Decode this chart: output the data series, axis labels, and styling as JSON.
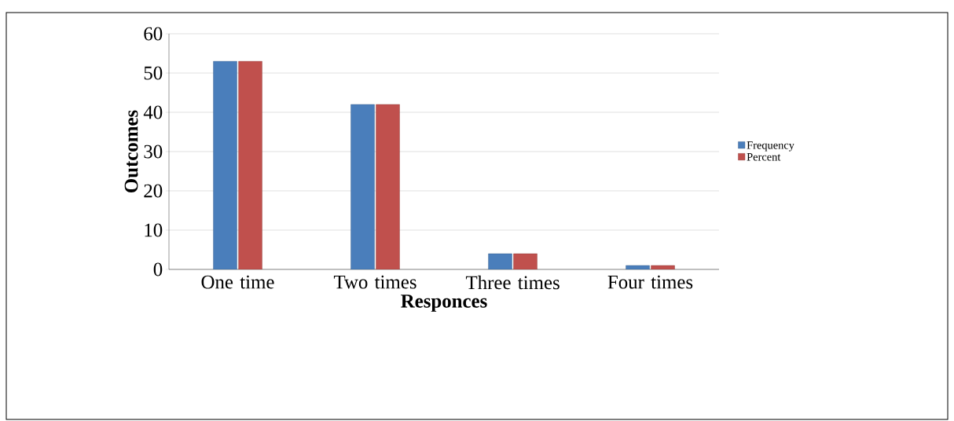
{
  "chart_data": {
    "type": "bar",
    "xlabel": "Responces",
    "ylabel": "Outcomes",
    "categories": [
      "One time",
      "Two times",
      "Three times",
      "Four times"
    ],
    "series": [
      {
        "name": "Frequency",
        "color": "#4a7ebb",
        "values": [
          53,
          42,
          4,
          1
        ]
      },
      {
        "name": "Percent",
        "color": "#c0504d",
        "values": [
          53,
          42,
          4,
          1
        ]
      }
    ],
    "ylim": [
      0,
      60
    ],
    "yticks": [
      0,
      10,
      20,
      30,
      40,
      50,
      60
    ],
    "grid": "y",
    "legend": "right"
  }
}
